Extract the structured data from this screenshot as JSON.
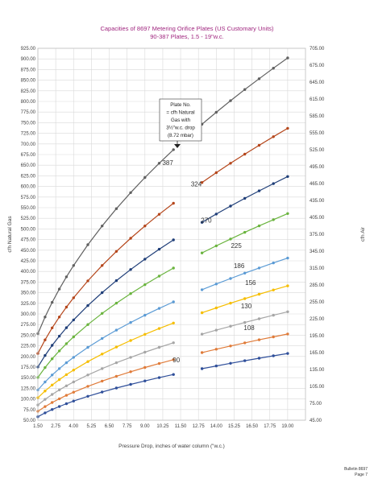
{
  "chart_data": {
    "type": "line",
    "title": "Capacities of 8697 Metering Orifice Plates (US Customary Units)",
    "subtitle": "90-387 Plates, 1.5 - 19\"w.c.",
    "xlabel": "Pressure Drop, inches of water column (\"w.c.)",
    "ylabel_left": "cfh Natural Gas",
    "ylabel_right": "cfh Air",
    "xlim": [
      1.5,
      20.25
    ],
    "ylim_left": [
      50,
      925
    ],
    "ylim_right": [
      45,
      705
    ],
    "x_ticks": [
      "1.50",
      "2.75",
      "4.00",
      "5.25",
      "6.50",
      "7.75",
      "9.00",
      "10.25",
      "11.50",
      "12.75",
      "14.00",
      "15.25",
      "16.50",
      "17.75",
      "19.00"
    ],
    "y_left_ticks": [
      "50.00",
      "75.00",
      "100.00",
      "125.00",
      "150.00",
      "175.00",
      "200.00",
      "225.00",
      "250.00",
      "275.00",
      "300.00",
      "325.00",
      "350.00",
      "375.00",
      "400.00",
      "425.00",
      "450.00",
      "475.00",
      "500.00",
      "525.00",
      "550.00",
      "575.00",
      "600.00",
      "625.00",
      "650.00",
      "675.00",
      "700.00",
      "725.00",
      "750.00",
      "775.00",
      "800.00",
      "825.00",
      "850.00",
      "875.00",
      "900.00",
      "925.00"
    ],
    "y_right_ticks": [
      "45.00",
      "75.00",
      "105.00",
      "135.00",
      "165.00",
      "195.00",
      "225.00",
      "255.00",
      "285.00",
      "315.00",
      "345.00",
      "375.00",
      "405.00",
      "435.00",
      "465.00",
      "495.00",
      "525.00",
      "555.00",
      "585.00",
      "615.00",
      "645.00",
      "675.00",
      "705.00"
    ],
    "gridlines": true,
    "series": [
      {
        "name": "387",
        "color": "#606060",
        "k": 207,
        "label_at": [
          10.6,
          650
        ]
      },
      {
        "name": "324",
        "color": "#b5461b",
        "k": 169,
        "label_at": [
          12.6,
          600
        ]
      },
      {
        "name": "270",
        "color": "#1f3e78",
        "k": 143,
        "label_at": [
          13.3,
          515
        ]
      },
      {
        "name": "225",
        "color": "#6ab43e",
        "k": 123,
        "label_at": [
          15.4,
          455
        ]
      },
      {
        "name": "186",
        "color": "#5b9bd5",
        "k": 99,
        "label_at": [
          15.6,
          408
        ]
      },
      {
        "name": "156",
        "color": "#f6be00",
        "k": 84,
        "label_at": [
          16.4,
          368
        ]
      },
      {
        "name": "130",
        "color": "#a6a6a6",
        "k": 70,
        "label_at": [
          16.1,
          313
        ]
      },
      {
        "name": "108",
        "color": "#e07b39",
        "k": 58,
        "label_at": [
          16.3,
          262
        ]
      },
      {
        "name": "90",
        "color": "#2f4f9a",
        "k": 47.5,
        "label_at": [
          11.2,
          186
        ]
      }
    ],
    "x_values": [
      1.5,
      2.0,
      2.5,
      3.0,
      3.5,
      4.0,
      5.0,
      6.0,
      7.0,
      8.0,
      9.0,
      10.0,
      11.0,
      12.0,
      13.0,
      14.0,
      15.0,
      16.0,
      17.0,
      18.0,
      19.0
    ],
    "gap": [
      11.5,
      12.5
    ]
  },
  "annotation": {
    "lines": [
      "Plate No.",
      "= cfh Natural",
      "Gas with",
      "3½\"w.c. drop",
      "(8.72 mbar)"
    ]
  },
  "footer": {
    "line1": "Bulletin 8697",
    "line2": "Page 7"
  }
}
